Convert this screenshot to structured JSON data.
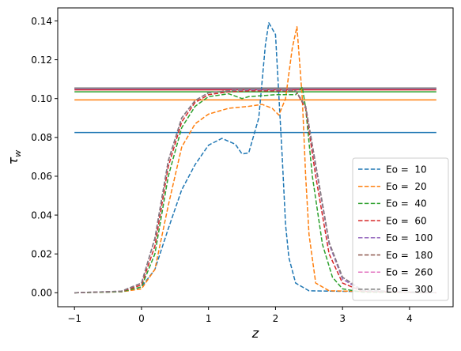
{
  "chart_data": {
    "type": "line",
    "title": "",
    "xlabel": "z",
    "ylabel": "τ_w",
    "xlim": [
      -1.25,
      4.65
    ],
    "ylim": [
      -0.0072,
      0.1467
    ],
    "xticks": [
      -1,
      0,
      1,
      2,
      3,
      4
    ],
    "yticks": [
      0.0,
      0.02,
      0.04,
      0.06,
      0.08,
      0.1,
      0.12,
      0.14
    ],
    "xtick_labels": [
      "−1",
      "0",
      "1",
      "2",
      "3",
      "4"
    ],
    "ytick_labels": [
      "0.00",
      "0.02",
      "0.04",
      "0.06",
      "0.08",
      "0.10",
      "0.12",
      "0.14"
    ],
    "grid": false,
    "legend_position": "lower-right",
    "series": [
      {
        "name": "Eo =  10",
        "color": "#1f77b4",
        "style": "dashed",
        "hline": 0.0825,
        "points": [
          [
            -1,
            0
          ],
          [
            -0.5,
            0.0003
          ],
          [
            -0.2,
            0.001
          ],
          [
            0,
            0.003
          ],
          [
            0.2,
            0.012
          ],
          [
            0.4,
            0.033
          ],
          [
            0.6,
            0.053
          ],
          [
            0.8,
            0.066
          ],
          [
            1.0,
            0.076
          ],
          [
            1.2,
            0.0795
          ],
          [
            1.4,
            0.0765
          ],
          [
            1.5,
            0.0715
          ],
          [
            1.6,
            0.072
          ],
          [
            1.75,
            0.09
          ],
          [
            1.85,
            0.128
          ],
          [
            1.9,
            0.139
          ],
          [
            2.0,
            0.133
          ],
          [
            2.1,
            0.07
          ],
          [
            2.15,
            0.035
          ],
          [
            2.2,
            0.018
          ],
          [
            2.3,
            0.005
          ],
          [
            2.5,
            0.001
          ],
          [
            4.4,
            0
          ]
        ]
      },
      {
        "name": "Eo =  20",
        "color": "#ff7f0e",
        "style": "dashed",
        "hline": 0.0993,
        "points": [
          [
            -1,
            0
          ],
          [
            -0.3,
            0.0005
          ],
          [
            0,
            0.002
          ],
          [
            0.2,
            0.012
          ],
          [
            0.4,
            0.045
          ],
          [
            0.6,
            0.075
          ],
          [
            0.8,
            0.087
          ],
          [
            1.0,
            0.092
          ],
          [
            1.3,
            0.095
          ],
          [
            1.6,
            0.096
          ],
          [
            1.8,
            0.097
          ],
          [
            1.95,
            0.095
          ],
          [
            2.05,
            0.0915
          ],
          [
            2.15,
            0.1
          ],
          [
            2.25,
            0.126
          ],
          [
            2.32,
            0.137
          ],
          [
            2.4,
            0.1
          ],
          [
            2.45,
            0.06
          ],
          [
            2.5,
            0.03
          ],
          [
            2.6,
            0.005
          ],
          [
            2.8,
            0.001
          ],
          [
            4.4,
            0
          ]
        ]
      },
      {
        "name": "Eo =  40",
        "color": "#2ca02c",
        "style": "dashed",
        "hline": 0.1035,
        "points": [
          [
            -1,
            0
          ],
          [
            -0.3,
            0.0005
          ],
          [
            0,
            0.003
          ],
          [
            0.2,
            0.02
          ],
          [
            0.4,
            0.06
          ],
          [
            0.6,
            0.085
          ],
          [
            0.8,
            0.096
          ],
          [
            1.0,
            0.101
          ],
          [
            1.3,
            0.1025
          ],
          [
            1.5,
            0.1
          ],
          [
            1.6,
            0.101
          ],
          [
            2.0,
            0.102
          ],
          [
            2.3,
            0.102
          ],
          [
            2.4,
            0.106
          ],
          [
            2.45,
            0.095
          ],
          [
            2.55,
            0.06
          ],
          [
            2.7,
            0.025
          ],
          [
            2.85,
            0.008
          ],
          [
            3.0,
            0.002
          ],
          [
            3.3,
            0.0003
          ],
          [
            4.4,
            0
          ]
        ]
      },
      {
        "name": "Eo =  60",
        "color": "#d62728",
        "style": "dashed",
        "hline": 0.1045,
        "points": [
          [
            -1,
            0
          ],
          [
            -0.3,
            0.0007
          ],
          [
            0,
            0.004
          ],
          [
            0.2,
            0.024
          ],
          [
            0.4,
            0.065
          ],
          [
            0.6,
            0.088
          ],
          [
            0.8,
            0.098
          ],
          [
            1.0,
            0.102
          ],
          [
            1.3,
            0.1035
          ],
          [
            1.6,
            0.104
          ],
          [
            2.0,
            0.104
          ],
          [
            2.3,
            0.104
          ],
          [
            2.45,
            0.095
          ],
          [
            2.6,
            0.06
          ],
          [
            2.8,
            0.02
          ],
          [
            3.0,
            0.005
          ],
          [
            3.3,
            0.0007
          ],
          [
            4.4,
            0
          ]
        ]
      },
      {
        "name": "Eo =  100",
        "color": "#9467bd",
        "style": "dashed",
        "hline": 0.105,
        "points": [
          [
            -1,
            0
          ],
          [
            -0.3,
            0.0008
          ],
          [
            0,
            0.005
          ],
          [
            0.2,
            0.028
          ],
          [
            0.4,
            0.068
          ],
          [
            0.6,
            0.09
          ],
          [
            0.8,
            0.099
          ],
          [
            1.0,
            0.103
          ],
          [
            1.3,
            0.104
          ],
          [
            1.6,
            0.1045
          ],
          [
            2.0,
            0.1045
          ],
          [
            2.3,
            0.104
          ],
          [
            2.45,
            0.096
          ],
          [
            2.6,
            0.065
          ],
          [
            2.8,
            0.025
          ],
          [
            3.0,
            0.007
          ],
          [
            3.3,
            0.001
          ],
          [
            4.4,
            0
          ]
        ]
      },
      {
        "name": "Eo =  180",
        "color": "#8c564b",
        "style": "dashed",
        "hline": 0.1053,
        "points": [
          [
            -1,
            0
          ],
          [
            -0.3,
            0.0008
          ],
          [
            0,
            0.005
          ],
          [
            0.2,
            0.028
          ],
          [
            0.4,
            0.068
          ],
          [
            0.6,
            0.09
          ],
          [
            0.8,
            0.099
          ],
          [
            1.0,
            0.103
          ],
          [
            1.3,
            0.104
          ],
          [
            1.6,
            0.105
          ],
          [
            2.0,
            0.105
          ],
          [
            2.3,
            0.104
          ],
          [
            2.45,
            0.096
          ],
          [
            2.6,
            0.066
          ],
          [
            2.8,
            0.026
          ],
          [
            3.0,
            0.008
          ],
          [
            3.3,
            0.0012
          ],
          [
            4.4,
            0
          ]
        ]
      },
      {
        "name": "Eo =  260",
        "color": "#e377c2",
        "style": "dashed",
        "hline": 0.1054,
        "points": [
          [
            -1,
            0
          ],
          [
            -0.3,
            0.0008
          ],
          [
            0,
            0.005
          ],
          [
            0.2,
            0.028
          ],
          [
            0.4,
            0.068
          ],
          [
            0.6,
            0.09
          ],
          [
            0.8,
            0.099
          ],
          [
            1.0,
            0.103
          ],
          [
            1.3,
            0.104
          ],
          [
            1.6,
            0.105
          ],
          [
            2.0,
            0.105
          ],
          [
            2.3,
            0.104
          ],
          [
            2.45,
            0.096
          ],
          [
            2.6,
            0.066
          ],
          [
            2.8,
            0.026
          ],
          [
            3.0,
            0.008
          ],
          [
            3.3,
            0.0012
          ],
          [
            4.4,
            0
          ]
        ]
      },
      {
        "name": "Eo =  300",
        "color": "#7f7f7f",
        "style": "dashed",
        "hline": 0.1055,
        "points": [
          [
            -1,
            0
          ],
          [
            -0.3,
            0.0008
          ],
          [
            0,
            0.005
          ],
          [
            0.2,
            0.028
          ],
          [
            0.4,
            0.068
          ],
          [
            0.6,
            0.09
          ],
          [
            0.8,
            0.099
          ],
          [
            1.0,
            0.103
          ],
          [
            1.3,
            0.104
          ],
          [
            1.6,
            0.105
          ],
          [
            2.0,
            0.105
          ],
          [
            2.3,
            0.104
          ],
          [
            2.45,
            0.096
          ],
          [
            2.6,
            0.066
          ],
          [
            2.8,
            0.026
          ],
          [
            3.0,
            0.008
          ],
          [
            3.3,
            0.0012
          ],
          [
            4.4,
            0
          ]
        ]
      }
    ]
  }
}
